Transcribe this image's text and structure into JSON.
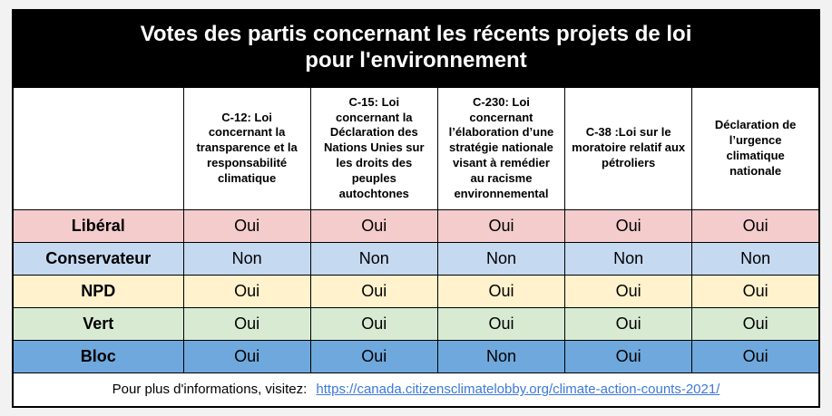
{
  "title": {
    "line1": "Votes des partis concernant les récents projets de loi",
    "line2": "pour l'environnement"
  },
  "table": {
    "columns": [
      "C-12: Loi concernant la transparence et la responsabilité climatique",
      "C-15: Loi concernant la Déclaration des Nations Unies sur les droits des peuples autochtones",
      "C-230: Loi concernant l’élaboration d’une stratégie nationale visant à remédier au racisme environnemental",
      "C-38 :Loi sur le moratoire relatif aux pétroliers",
      "Déclaration de l’urgence climatique nationale"
    ],
    "rows": [
      {
        "party": "Libéral",
        "color": "#f4cccc",
        "votes": [
          "Oui",
          "Oui",
          "Oui",
          "Oui",
          "Oui"
        ]
      },
      {
        "party": "Conservateur",
        "color": "#c5d9f1",
        "votes": [
          "Non",
          "Non",
          "Non",
          "Non",
          "Non"
        ]
      },
      {
        "party": "NPD",
        "color": "#fff2cc",
        "votes": [
          "Oui",
          "Oui",
          "Oui",
          "Oui",
          "Oui"
        ]
      },
      {
        "party": "Vert",
        "color": "#d9ead3",
        "votes": [
          "Oui",
          "Oui",
          "Oui",
          "Oui",
          "Oui"
        ]
      },
      {
        "party": "Bloc",
        "color": "#6fa8dc",
        "votes": [
          "Oui",
          "Oui",
          "Non",
          "Oui",
          "Oui"
        ]
      }
    ]
  },
  "footer": {
    "text": "Pour plus d'informations, visitez:",
    "link": "https://canada.citizensclimatelobby.org/climate-action-counts-2021/",
    "link_color": "#3c78d8"
  },
  "chart_data": {
    "type": "table",
    "title": "Votes des partis concernant les récents projets de loi pour l'environnement",
    "columns": [
      "C-12: Loi concernant la transparence et la responsabilité climatique",
      "C-15: Loi concernant la Déclaration des Nations Unies sur les droits des peuples autochtones",
      "C-230: Loi concernant l’élaboration d’une stratégie nationale visant à remédier au racisme environnemental",
      "C-38 :Loi sur le moratoire relatif aux pétroliers",
      "Déclaration de l’urgence climatique nationale"
    ],
    "row_header": [
      "Libéral",
      "Conservateur",
      "NPD",
      "Vert",
      "Bloc"
    ],
    "rows": [
      [
        "Oui",
        "Oui",
        "Oui",
        "Oui",
        "Oui"
      ],
      [
        "Non",
        "Non",
        "Non",
        "Non",
        "Non"
      ],
      [
        "Oui",
        "Oui",
        "Oui",
        "Oui",
        "Oui"
      ],
      [
        "Oui",
        "Oui",
        "Oui",
        "Oui",
        "Oui"
      ],
      [
        "Oui",
        "Oui",
        "Non",
        "Oui",
        "Oui"
      ]
    ],
    "row_colors": [
      "#f4cccc",
      "#c5d9f1",
      "#fff2cc",
      "#d9ead3",
      "#6fa8dc"
    ],
    "footer": "Pour plus d'informations, visitez: https://canada.citizensclimatelobby.org/climate-action-counts-2021/"
  }
}
